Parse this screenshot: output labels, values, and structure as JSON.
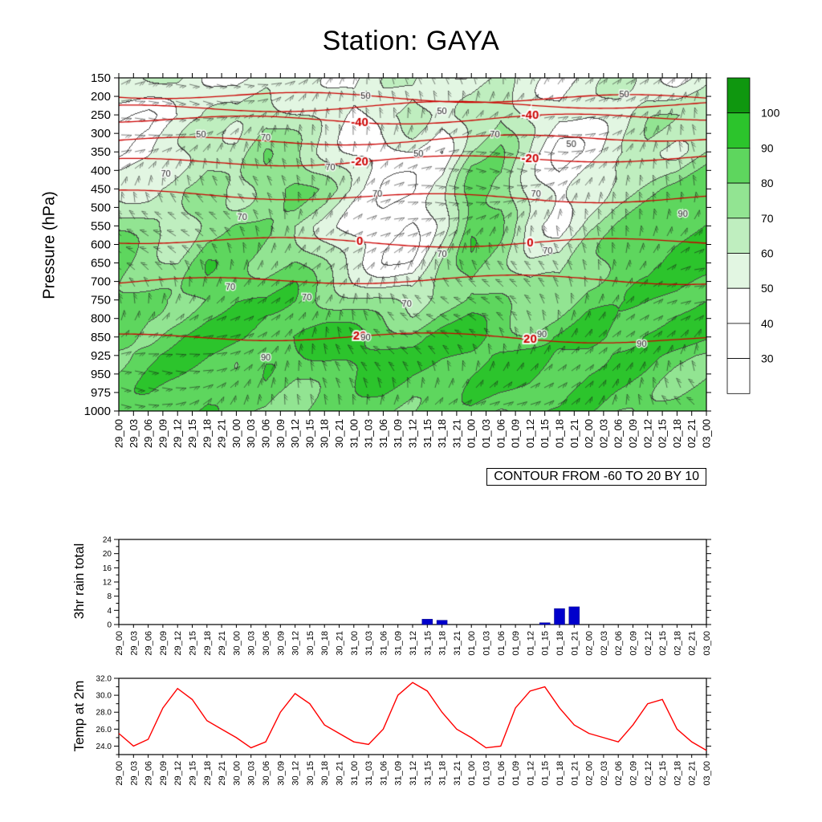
{
  "page": {
    "title": "Station: GAYA",
    "background": "#ffffff"
  },
  "time_labels": [
    "29_00",
    "29_03",
    "29_06",
    "29_09",
    "29_12",
    "29_15",
    "29_18",
    "29_21",
    "30_00",
    "30_03",
    "30_06",
    "30_09",
    "30_12",
    "30_15",
    "30_18",
    "30_21",
    "31_00",
    "31_03",
    "31_06",
    "31_09",
    "31_12",
    "31_15",
    "31_18",
    "31_21",
    "01_00",
    "01_03",
    "01_06",
    "01_09",
    "01_12",
    "01_15",
    "01_18",
    "01_21",
    "02_00",
    "02_03",
    "02_06",
    "02_09",
    "02_12",
    "02_15",
    "02_18",
    "02_21",
    "03_00"
  ],
  "chart_data": [
    {
      "type": "heatmap",
      "name": "humidity-pressure-time-section",
      "title": "Station: GAYA",
      "ylabel": "Pressure (hPa)",
      "xlabel": "",
      "caption": "CONTOUR FROM -60 TO 20 BY 10",
      "pressure_levels": [
        150,
        200,
        250,
        300,
        350,
        400,
        450,
        500,
        550,
        600,
        650,
        700,
        750,
        800,
        850,
        925,
        950,
        975,
        1000
      ],
      "grid_pressures": [
        150,
        250,
        350,
        450,
        550,
        650,
        750,
        850,
        925,
        1000
      ],
      "rh_grid": [
        [
          48,
          52,
          58,
          50,
          45,
          55,
          62,
          55,
          48,
          58,
          65,
          60,
          52,
          58,
          50,
          45,
          52,
          60,
          55,
          48,
          55
        ],
        [
          42,
          38,
          48,
          55,
          60,
          68,
          58,
          50,
          45,
          62,
          72,
          55,
          68,
          75,
          58,
          48,
          52,
          60,
          68,
          62,
          55
        ],
        [
          38,
          45,
          60,
          72,
          65,
          75,
          68,
          55,
          45,
          40,
          50,
          45,
          70,
          78,
          60,
          42,
          48,
          58,
          65,
          58,
          68
        ],
        [
          55,
          62,
          72,
          78,
          68,
          80,
          84,
          72,
          55,
          42,
          38,
          48,
          82,
          78,
          55,
          45,
          58,
          70,
          76,
          82,
          90
        ],
        [
          75,
          68,
          62,
          80,
          85,
          78,
          70,
          62,
          50,
          42,
          38,
          55,
          84,
          74,
          52,
          48,
          66,
          76,
          84,
          90,
          94
        ],
        [
          82,
          76,
          70,
          85,
          80,
          76,
          82,
          70,
          58,
          48,
          45,
          68,
          85,
          78,
          65,
          62,
          74,
          82,
          80,
          88,
          93
        ],
        [
          86,
          80,
          76,
          82,
          86,
          82,
          86,
          80,
          74,
          68,
          64,
          78,
          86,
          82,
          76,
          80,
          86,
          82,
          86,
          90,
          90
        ],
        [
          90,
          86,
          92,
          95,
          90,
          86,
          92,
          95,
          90,
          84,
          80,
          90,
          95,
          92,
          86,
          90,
          95,
          92,
          95,
          96,
          92
        ],
        [
          86,
          92,
          95,
          90,
          86,
          92,
          86,
          92,
          95,
          92,
          86,
          86,
          92,
          95,
          92,
          86,
          92,
          95,
          92,
          88,
          86
        ],
        [
          82,
          86,
          82,
          86,
          82,
          86,
          82,
          86,
          82,
          86,
          82,
          82,
          86,
          82,
          86,
          82,
          86,
          82,
          86,
          82,
          82
        ]
      ],
      "colorbar": {
        "labels": [
          30,
          40,
          50,
          60,
          70,
          80,
          90,
          100
        ],
        "colors": [
          "#ffffff",
          "#ffffff",
          "#ffffff",
          "#e2f6e2",
          "#bfeebf",
          "#92e492",
          "#5ed65e",
          "#2cc42c",
          "#0f970f"
        ]
      },
      "contour_color": "#cc0000",
      "temp_contours": [
        {
          "pressure": 200,
          "label": ""
        },
        {
          "pressure": 228,
          "label": ""
        },
        {
          "pressure": 258,
          "label": "-40"
        },
        {
          "pressure": 315,
          "label": ""
        },
        {
          "pressure": 372,
          "label": "-20"
        },
        {
          "pressure": 470,
          "label": ""
        },
        {
          "pressure": 590,
          "label": "0"
        },
        {
          "pressure": 700,
          "label": ""
        },
        {
          "pressure": 858,
          "label": "20"
        }
      ],
      "temp_contour_label_x": [
        0.41,
        0.7
      ],
      "rh_contour_labels": [
        {
          "x": 0.42,
          "y": 0.055,
          "t": "50"
        },
        {
          "x": 0.55,
          "y": 0.1,
          "t": "50"
        },
        {
          "x": 0.86,
          "y": 0.05,
          "t": "50"
        },
        {
          "x": 0.14,
          "y": 0.17,
          "t": "50"
        },
        {
          "x": 0.25,
          "y": 0.18,
          "t": "70"
        },
        {
          "x": 0.64,
          "y": 0.17,
          "t": "70"
        },
        {
          "x": 0.77,
          "y": 0.2,
          "t": "50"
        },
        {
          "x": 0.51,
          "y": 0.23,
          "t": "50"
        },
        {
          "x": 0.36,
          "y": 0.27,
          "t": "70"
        },
        {
          "x": 0.08,
          "y": 0.29,
          "t": "70"
        },
        {
          "x": 0.44,
          "y": 0.35,
          "t": "70"
        },
        {
          "x": 0.71,
          "y": 0.35,
          "t": "70"
        },
        {
          "x": 0.21,
          "y": 0.42,
          "t": "70"
        },
        {
          "x": 0.96,
          "y": 0.41,
          "t": "90"
        },
        {
          "x": 0.55,
          "y": 0.53,
          "t": "70"
        },
        {
          "x": 0.73,
          "y": 0.52,
          "t": "70"
        },
        {
          "x": 0.19,
          "y": 0.63,
          "t": "70"
        },
        {
          "x": 0.32,
          "y": 0.66,
          "t": "70"
        },
        {
          "x": 0.49,
          "y": 0.68,
          "t": "70"
        },
        {
          "x": 0.42,
          "y": 0.78,
          "t": "90"
        },
        {
          "x": 0.72,
          "y": 0.77,
          "t": "90"
        },
        {
          "x": 0.89,
          "y": 0.8,
          "t": "90"
        },
        {
          "x": 0.25,
          "y": 0.84,
          "t": "90"
        }
      ],
      "wind_barbs_shown": true
    },
    {
      "type": "bar",
      "name": "rain-3hr-total",
      "ylabel": "3hr rain total",
      "ylim": [
        0,
        24
      ],
      "yticks": [
        0,
        4,
        8,
        12,
        16,
        20,
        24
      ],
      "bar_color": "#0000cc",
      "categories_ref": "time_labels",
      "values": [
        0,
        0,
        0,
        0,
        0,
        0,
        0,
        0,
        0,
        0,
        0,
        0,
        0,
        0,
        0,
        0,
        0,
        0,
        0,
        0,
        0,
        1.5,
        1.2,
        0,
        0,
        0,
        0,
        0,
        0,
        0.5,
        4.5,
        5,
        0,
        0,
        0,
        0,
        0,
        0,
        0,
        0,
        0
      ]
    },
    {
      "type": "line",
      "name": "temp-at-2m",
      "ylabel": "Temp at 2m",
      "ylim": [
        23,
        32
      ],
      "yticks": [
        24,
        26,
        28,
        30,
        32
      ],
      "ytick_labels": [
        "24.0",
        "26.0",
        "28.0",
        "30.0",
        "32.0"
      ],
      "line_color": "#ff0000",
      "x_ref": "time_labels",
      "values": [
        25.5,
        24.0,
        24.8,
        28.5,
        30.8,
        29.5,
        27.0,
        26.0,
        25.0,
        23.8,
        24.5,
        28.0,
        30.2,
        29.0,
        26.5,
        25.5,
        24.5,
        24.2,
        26.0,
        30.0,
        31.5,
        30.5,
        28.0,
        26.0,
        25.0,
        23.8,
        24.0,
        28.5,
        30.5,
        31.0,
        28.5,
        26.5,
        25.5,
        25.0,
        24.5,
        26.5,
        29.0,
        29.5,
        26.0,
        24.5,
        23.5
      ]
    }
  ]
}
